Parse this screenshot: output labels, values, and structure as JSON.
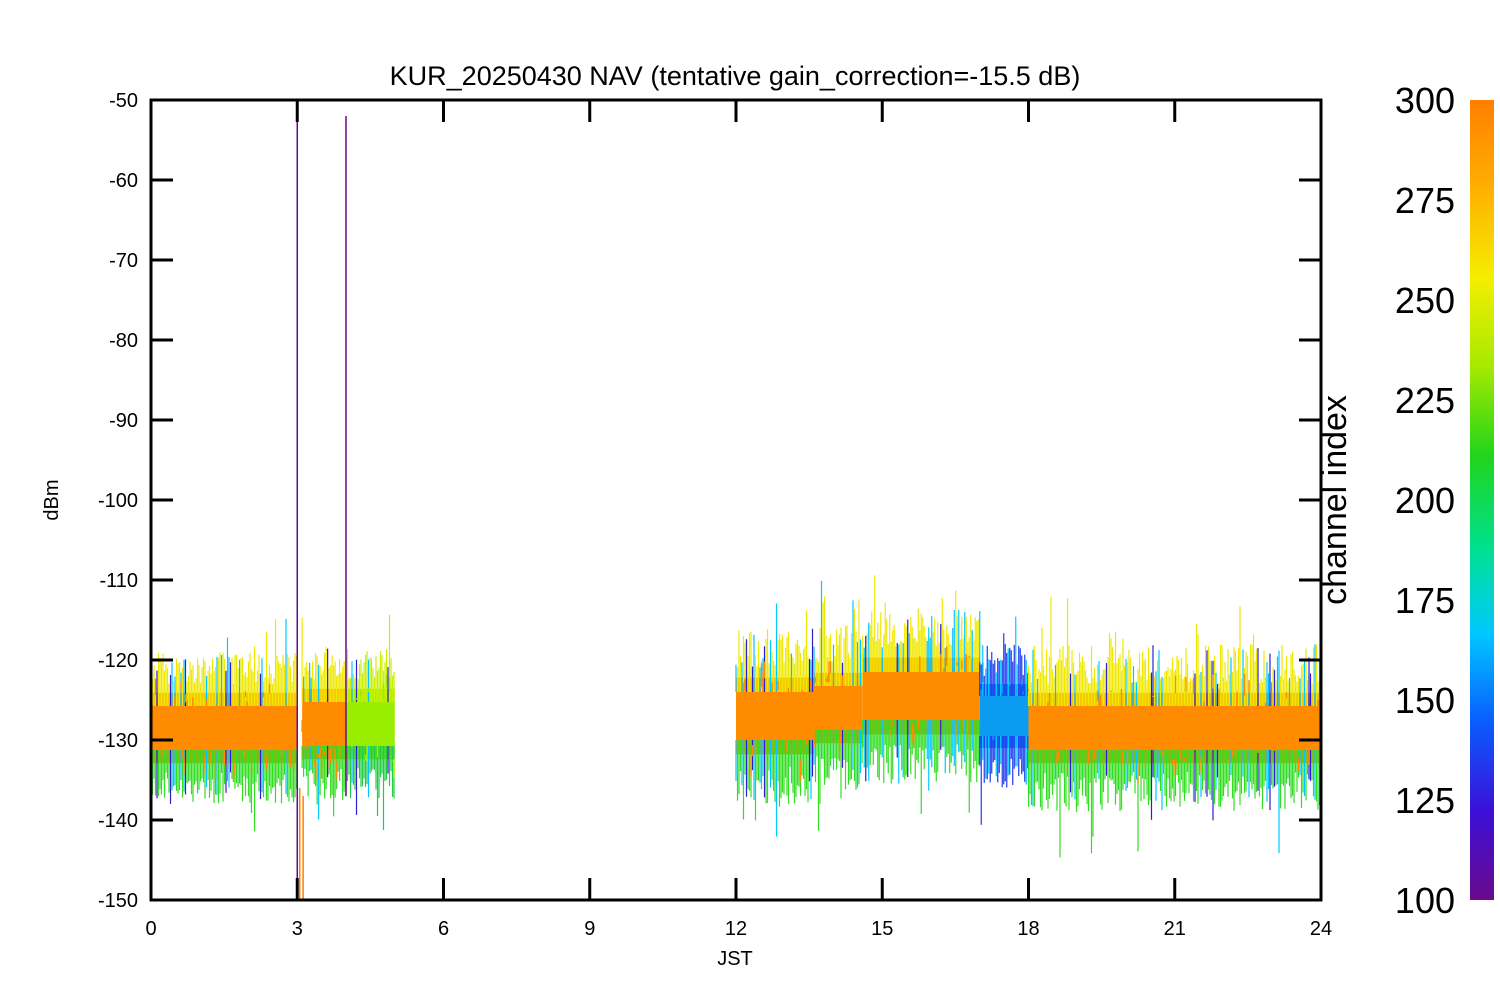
{
  "chart_data": {
    "type": "line",
    "title": "KUR_20250430 NAV (tentative gain_correction=-15.5 dB)",
    "xlabel": "JST",
    "ylabel": "dBm",
    "xlim": [
      0,
      24
    ],
    "ylim": [
      -150,
      -50
    ],
    "xticks": [
      0,
      3,
      6,
      9,
      12,
      15,
      18,
      21,
      24
    ],
    "yticks": [
      -50,
      -60,
      -70,
      -80,
      -90,
      -100,
      -110,
      -120,
      -130,
      -140,
      -150
    ],
    "grid": false,
    "colorbar": {
      "label": "channel index",
      "range": [
        100,
        300
      ],
      "ticks": [
        300,
        275,
        250,
        225,
        200,
        175,
        150,
        125,
        100
      ],
      "colormap": "rainbow (purple→blue→cyan→green→yellow→orange)",
      "stops": [
        "#6a0a8c",
        "#3b10d8",
        "#0a5cff",
        "#00c8ff",
        "#00e08a",
        "#21d41c",
        "#a6ea00",
        "#f5ee00",
        "#ffb000",
        "#ff7f00"
      ]
    },
    "segments": [
      {
        "x_start": 0.0,
        "x_end": 3.0,
        "center": -128.5,
        "half_width": 5.5,
        "noise": 4,
        "dominant_color": "#ff8c00",
        "edge_color": "#f0e800",
        "low_color": "#33dd22"
      },
      {
        "x_start": 3.1,
        "x_end": 4.0,
        "center": -128.0,
        "half_width": 5.5,
        "noise": 4,
        "dominant_color": "#ff8c00",
        "edge_color": "#f0e800",
        "low_color": "#33dd22"
      },
      {
        "x_start": 4.0,
        "x_end": 5.0,
        "center": -128.0,
        "half_width": 5.5,
        "noise": 4,
        "dominant_color": "#99ee00",
        "edge_color": "#c8f000",
        "low_color": "#22cc44"
      },
      {
        "x_start": 12.0,
        "x_end": 13.6,
        "center": -127.0,
        "half_width": 6.0,
        "noise": 5,
        "dominant_color": "#ff8c00",
        "edge_color": "#f0e800",
        "low_color": "#33dd22"
      },
      {
        "x_start": 13.6,
        "x_end": 14.6,
        "center": -126.0,
        "half_width": 5.5,
        "noise": 5,
        "dominant_color": "#ff8c00",
        "edge_color": "#f0e800",
        "low_color": "#33dd22"
      },
      {
        "x_start": 14.6,
        "x_end": 17.0,
        "center": -124.5,
        "half_width": 6.0,
        "noise": 5,
        "dominant_color": "#ff8c00",
        "edge_color": "#f0e800",
        "low_color": "#33dd22"
      },
      {
        "x_start": 17.0,
        "x_end": 18.0,
        "center": -127.0,
        "half_width": 5.0,
        "noise": 4,
        "dominant_color": "#0b9cf0",
        "edge_color": "#1e3cf0",
        "low_color": "#1e3cf0"
      },
      {
        "x_start": 18.0,
        "x_end": 24.0,
        "center": -128.5,
        "half_width": 5.5,
        "noise": 5,
        "dominant_color": "#ff8c00",
        "edge_color": "#f0e800",
        "low_color": "#33dd22"
      }
    ],
    "spikes": [
      {
        "x": 3.0,
        "y_from": -150,
        "y_to": -52,
        "color": "#6a0a8c"
      },
      {
        "x": 4.0,
        "y_from": -137,
        "y_to": -52,
        "color": "#6a0a8c"
      },
      {
        "x": 3.05,
        "y_from": -150,
        "y_to": -136,
        "color": "#ff7f00"
      },
      {
        "x": 3.12,
        "y_from": -150,
        "y_to": -137,
        "color": "#ff7f00"
      }
    ],
    "gaps": [
      [
        3.0,
        3.1
      ],
      [
        5.0,
        12.0
      ]
    ]
  }
}
